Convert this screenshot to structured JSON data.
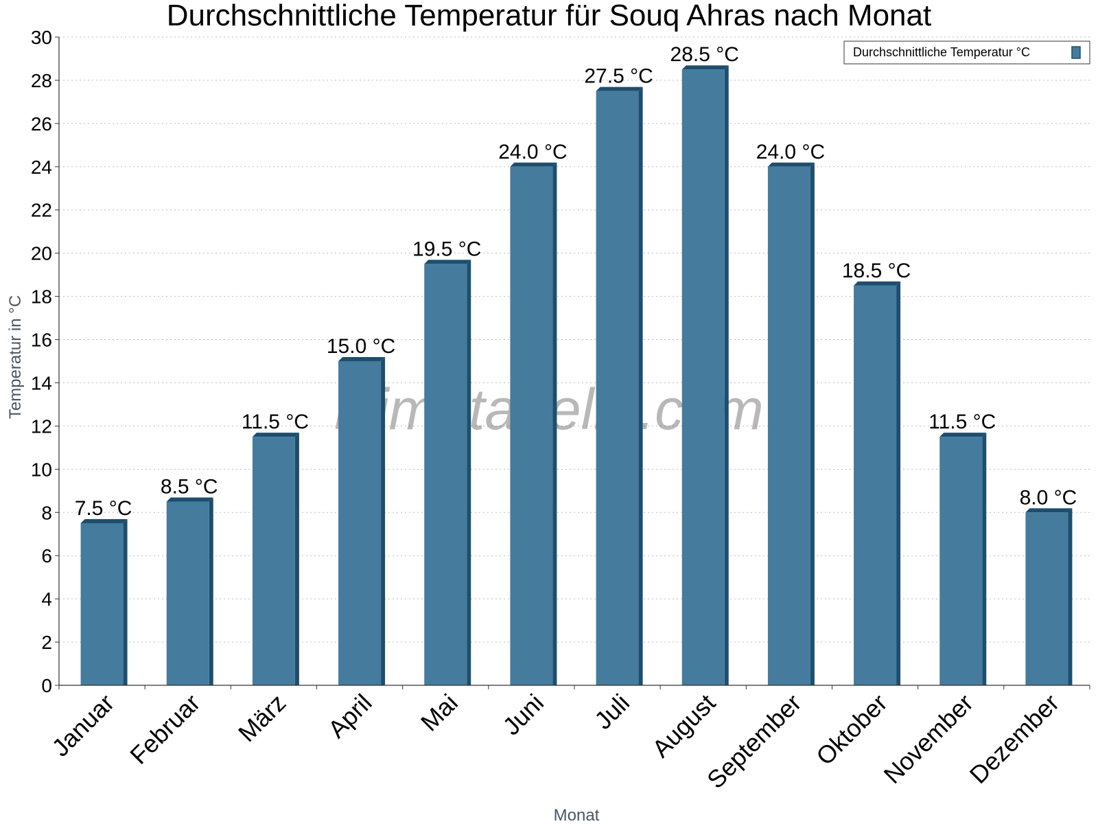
{
  "chart_data": {
    "type": "bar",
    "title": "Durchschnittliche Temperatur für Souq Ahras nach Monat",
    "xlabel": "Monat",
    "ylabel": "Temperatur in °C",
    "categories": [
      "Januar",
      "Februar",
      "März",
      "April",
      "Mai",
      "Juni",
      "Juli",
      "August",
      "September",
      "Oktober",
      "November",
      "Dezember"
    ],
    "series": [
      {
        "name": "Durchschnittliche Temperatur °C",
        "values": [
          7.5,
          8.5,
          11.5,
          15.0,
          19.5,
          24.0,
          27.5,
          28.5,
          24.0,
          18.5,
          11.5,
          8.0
        ],
        "data_labels": [
          "7.5 °C",
          "8.5 °C",
          "11.5 °C",
          "15.0 °C",
          "19.5 °C",
          "24.0 °C",
          "27.5 °C",
          "28.5 °C",
          "24.0 °C",
          "18.5 °C",
          "11.5 °C",
          "8.0 °C"
        ],
        "color": "#457b9d",
        "edge_color": "#1d4e6e"
      }
    ],
    "ylim": [
      0,
      30
    ],
    "y_ticks": [
      "0",
      "2",
      "4",
      "6",
      "8",
      "10",
      "12",
      "14",
      "16",
      "18",
      "20",
      "22",
      "24",
      "26",
      "28",
      "30"
    ],
    "grid": true,
    "legend_position": "top-right",
    "watermark": "klimatabelle.com"
  }
}
